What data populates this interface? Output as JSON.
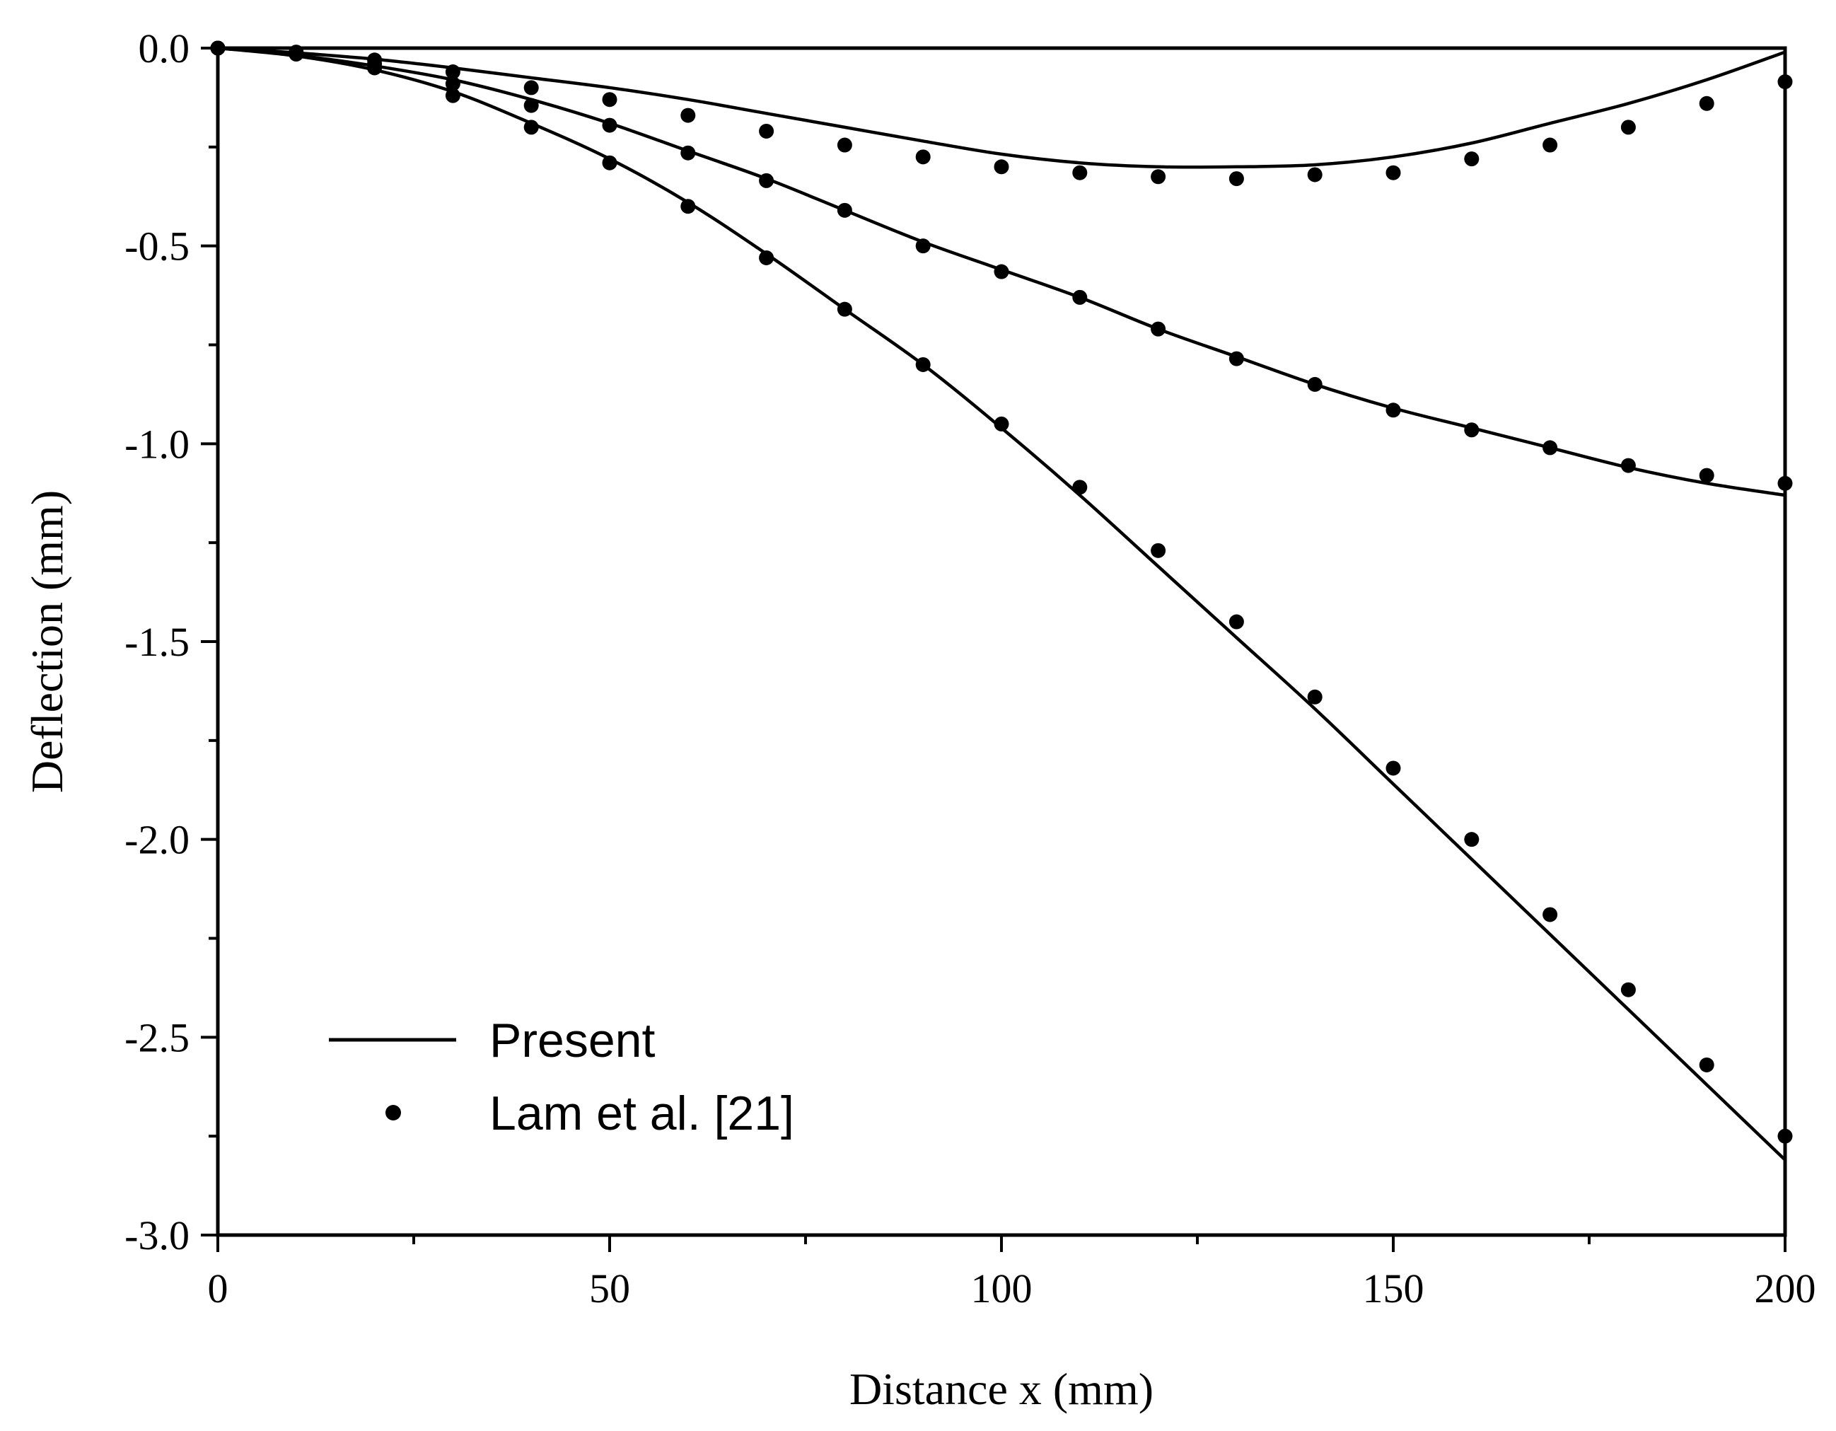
{
  "chart_data": {
    "type": "line",
    "title": "",
    "xlabel": "Distance x (mm)",
    "ylabel": "Deflection (mm)",
    "xlim": [
      0,
      200
    ],
    "ylim": [
      -3.0,
      0.0
    ],
    "x_ticks": [
      0,
      50,
      100,
      150,
      200
    ],
    "x_tick_labels": [
      "0",
      "50",
      "100",
      "150",
      "200"
    ],
    "y_ticks": [
      0.0,
      -0.5,
      -1.0,
      -1.5,
      -2.0,
      -2.5,
      -3.0
    ],
    "y_tick_labels": [
      "0.0",
      "-0.5",
      "-1.0",
      "-1.5",
      "-2.0",
      "-2.5",
      "-3.0"
    ],
    "grid": false,
    "legend": {
      "position": "bottom-left",
      "entries": [
        {
          "label": "Present",
          "marker": "line"
        },
        {
          "label": "Lam et al. [21]",
          "marker": "dot"
        }
      ]
    },
    "x": [
      0,
      10,
      20,
      30,
      40,
      50,
      60,
      70,
      80,
      90,
      100,
      110,
      120,
      130,
      140,
      150,
      160,
      170,
      180,
      190,
      200
    ],
    "series": [
      {
        "name": "Present",
        "style": "line",
        "curve": "top",
        "values": [
          0,
          -0.012,
          -0.028,
          -0.05,
          -0.075,
          -0.1,
          -0.13,
          -0.165,
          -0.2,
          -0.235,
          -0.268,
          -0.29,
          -0.3,
          -0.3,
          -0.295,
          -0.275,
          -0.24,
          -0.19,
          -0.14,
          -0.08,
          -0.01
        ]
      },
      {
        "name": "Lam et al. [21]",
        "style": "dots",
        "curve": "top",
        "values": [
          0,
          -0.01,
          -0.03,
          -0.06,
          -0.1,
          -0.13,
          -0.17,
          -0.21,
          -0.245,
          -0.275,
          -0.3,
          -0.315,
          -0.325,
          -0.33,
          -0.32,
          -0.315,
          -0.28,
          -0.245,
          -0.2,
          -0.14,
          -0.085
        ]
      },
      {
        "name": "Present",
        "style": "line",
        "curve": "middle",
        "values": [
          0,
          -0.018,
          -0.045,
          -0.08,
          -0.13,
          -0.19,
          -0.26,
          -0.33,
          -0.41,
          -0.49,
          -0.56,
          -0.63,
          -0.71,
          -0.78,
          -0.85,
          -0.91,
          -0.96,
          -1.01,
          -1.06,
          -1.1,
          -1.13
        ]
      },
      {
        "name": "Lam et al. [21]",
        "style": "dots",
        "curve": "middle",
        "values": [
          0,
          -0.015,
          -0.04,
          -0.09,
          -0.145,
          -0.195,
          -0.265,
          -0.335,
          -0.41,
          -0.5,
          -0.565,
          -0.63,
          -0.71,
          -0.785,
          -0.85,
          -0.915,
          -0.965,
          -1.01,
          -1.055,
          -1.08,
          -1.1
        ]
      },
      {
        "name": "Present",
        "style": "line",
        "curve": "bottom",
        "values": [
          0,
          -0.02,
          -0.055,
          -0.11,
          -0.19,
          -0.28,
          -0.39,
          -0.52,
          -0.66,
          -0.8,
          -0.96,
          -1.13,
          -1.31,
          -1.49,
          -1.67,
          -1.86,
          -2.05,
          -2.24,
          -2.43,
          -2.62,
          -2.81
        ]
      },
      {
        "name": "Lam et al. [21]",
        "style": "dots",
        "curve": "bottom",
        "values": [
          0,
          -0.015,
          -0.05,
          -0.12,
          -0.2,
          -0.29,
          -0.4,
          -0.53,
          -0.66,
          -0.8,
          -0.95,
          -1.11,
          -1.27,
          -1.45,
          -1.64,
          -1.82,
          -2.0,
          -2.19,
          -2.38,
          -2.57,
          -2.75
        ]
      }
    ]
  }
}
